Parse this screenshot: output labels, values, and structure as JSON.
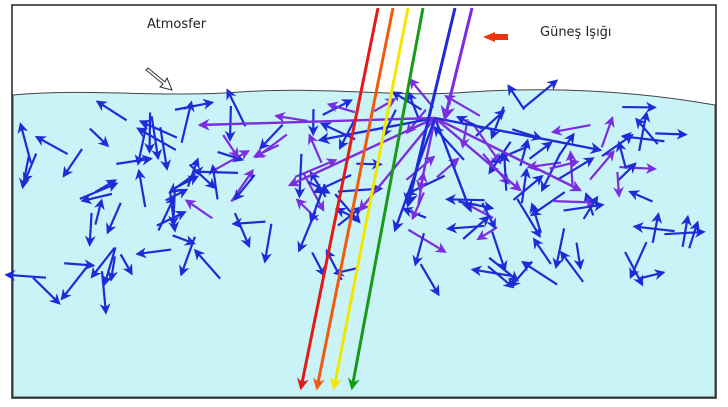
{
  "labels": {
    "atmosphere": "Atmosfer",
    "sunlight": "Güneş Işığı"
  }
}
